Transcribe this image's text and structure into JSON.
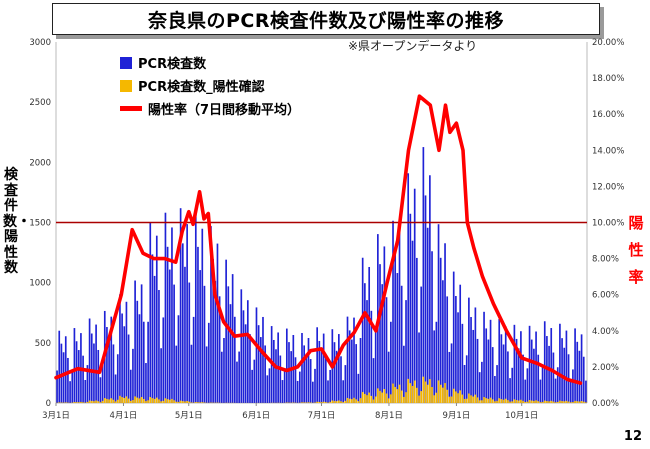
{
  "header": {
    "title": "奈良県のPCR検査件数及び陽性率の推移"
  },
  "note": "※県オープンデータより",
  "page_number": "12",
  "chart_data": {
    "type": "bar",
    "title": "奈良県のPCR検査件数及び陽性率の推移",
    "ylabel": "検査件数・陽性数",
    "y2label": "陽性率",
    "ylim": [
      0,
      3000
    ],
    "y2lim": [
      0,
      20
    ],
    "yticks": [
      "0",
      "500",
      "1000",
      "1500",
      "2000",
      "2500",
      "3000"
    ],
    "y2ticks": [
      "0.00%",
      "2.00%",
      "4.00%",
      "6.00%",
      "8.00%",
      "10.00%",
      "12.00%",
      "14.00%",
      "16.00%",
      "18.00%",
      "20.00%"
    ],
    "x_start": "2020-03-01",
    "x_end": "2020-10-31",
    "xticks": [
      "3月1日",
      "4月1日",
      "5月1日",
      "6月1日",
      "7月1日",
      "8月1日",
      "9月1日",
      "10月1日"
    ],
    "reference_line": {
      "axis": "y2",
      "value": 10,
      "color": "#aa0000"
    },
    "legend": {
      "placement": "top-left"
    },
    "series": [
      {
        "name": "PCR検査数",
        "kind": "bar",
        "color": "#1f22d6",
        "weekly_peaks": [
          600,
          620,
          700,
          760,
          900,
          1000,
          1500,
          1580,
          1620,
          1590,
          1480,
          1200,
          950,
          800,
          640,
          620,
          580,
          630,
          610,
          700,
          1200,
          1400,
          1500,
          1900,
          2150,
          1500,
          1100,
          880,
          760,
          700,
          650,
          640,
          680,
          660,
          620
        ]
      },
      {
        "name": "PCR検査数_陽性確認",
        "kind": "bar",
        "color": "#f5b800",
        "weekly_peaks": [
          5,
          8,
          20,
          40,
          60,
          55,
          50,
          40,
          20,
          8,
          4,
          2,
          1,
          1,
          2,
          4,
          6,
          10,
          20,
          40,
          90,
          120,
          160,
          200,
          220,
          190,
          120,
          80,
          50,
          40,
          30,
          25,
          20,
          20,
          18
        ]
      },
      {
        "name": "陽性率（7日間移動平均）",
        "kind": "line",
        "axis": "y2",
        "color": "#ff0000",
        "x": [
          "2020-03-01",
          "2020-03-11",
          "2020-03-21",
          "2020-03-31",
          "2020-04-05",
          "2020-04-10",
          "2020-04-15",
          "2020-04-20",
          "2020-04-25",
          "2020-04-28",
          "2020-05-01",
          "2020-05-03",
          "2020-05-06",
          "2020-05-08",
          "2020-05-10",
          "2020-05-13",
          "2020-05-17",
          "2020-05-22",
          "2020-05-28",
          "2020-06-04",
          "2020-06-10",
          "2020-06-15",
          "2020-06-20",
          "2020-06-26",
          "2020-07-01",
          "2020-07-06",
          "2020-07-11",
          "2020-07-16",
          "2020-07-21",
          "2020-07-26",
          "2020-07-31",
          "2020-08-05",
          "2020-08-10",
          "2020-08-15",
          "2020-08-20",
          "2020-08-24",
          "2020-08-27",
          "2020-08-29",
          "2020-09-01",
          "2020-09-04",
          "2020-09-06",
          "2020-09-09",
          "2020-09-13",
          "2020-09-18",
          "2020-09-24",
          "2020-10-01",
          "2020-10-08",
          "2020-10-15",
          "2020-10-22",
          "2020-10-28"
        ],
        "values": [
          1.4,
          1.9,
          1.7,
          6.0,
          9.6,
          8.3,
          8.0,
          8.0,
          7.8,
          9.5,
          10.6,
          9.9,
          11.7,
          10.2,
          10.5,
          6.0,
          4.5,
          3.7,
          3.8,
          2.8,
          2.0,
          1.8,
          2.0,
          2.9,
          3.0,
          2.0,
          3.2,
          3.9,
          5.0,
          4.0,
          6.6,
          9.0,
          14.0,
          17.0,
          16.5,
          14.0,
          16.5,
          15.0,
          15.5,
          14.0,
          10.0,
          8.6,
          7.0,
          5.5,
          4.0,
          2.5,
          2.2,
          1.8,
          1.3,
          1.1
        ]
      }
    ]
  }
}
